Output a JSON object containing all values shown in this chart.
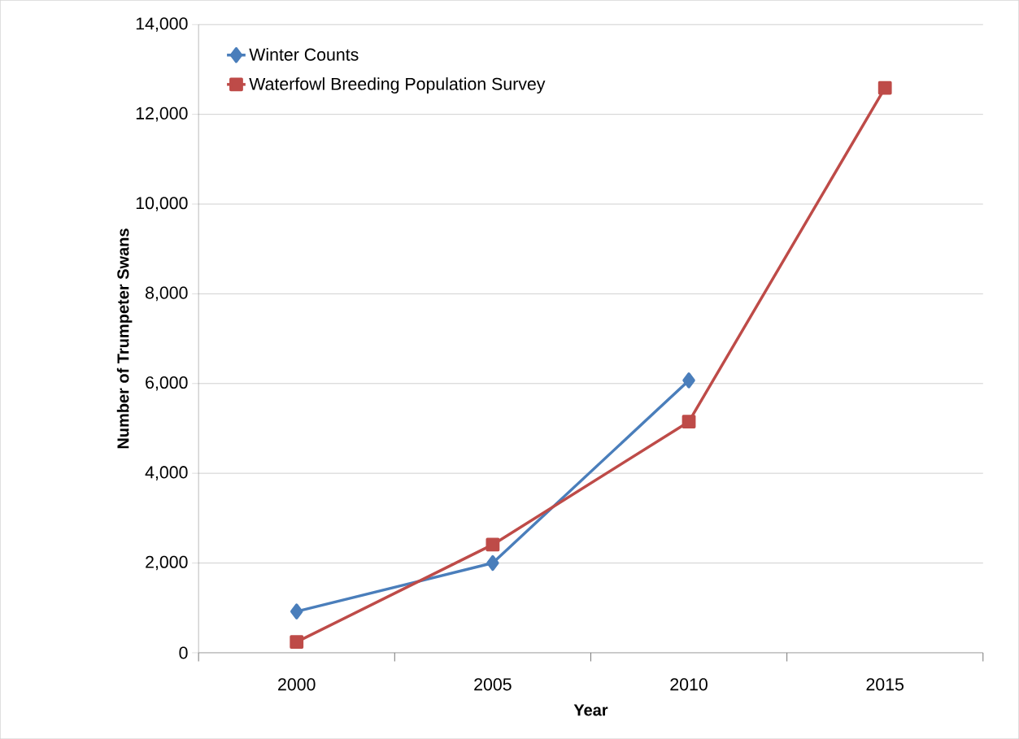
{
  "chart_data": {
    "type": "line",
    "xlabel": "Year",
    "ylabel": "Number of Trumpeter Swans",
    "categories": [
      "2000",
      "2005",
      "2010",
      "2015"
    ],
    "series": [
      {
        "name": "Winter Counts",
        "color": "#4a7ebb",
        "marker": "diamond",
        "values": [
          920,
          2000,
          6070,
          null
        ]
      },
      {
        "name": "Waterfowl Breeding Population Survey",
        "color": "#be4b48",
        "marker": "square",
        "values": [
          240,
          2410,
          5150,
          12590
        ]
      }
    ],
    "ylim": [
      0,
      14000
    ],
    "yticks": [
      {
        "value": 0,
        "label": "0"
      },
      {
        "value": 2000,
        "label": "2,000"
      },
      {
        "value": 4000,
        "label": "4,000"
      },
      {
        "value": 6000,
        "label": "6,000"
      },
      {
        "value": 8000,
        "label": "8,000"
      },
      {
        "value": 10000,
        "label": "10,000"
      },
      {
        "value": 12000,
        "label": "12,000"
      },
      {
        "value": 14000,
        "label": "14,000"
      }
    ],
    "grid": "y",
    "legend": "top left",
    "line_style": "solid"
  }
}
